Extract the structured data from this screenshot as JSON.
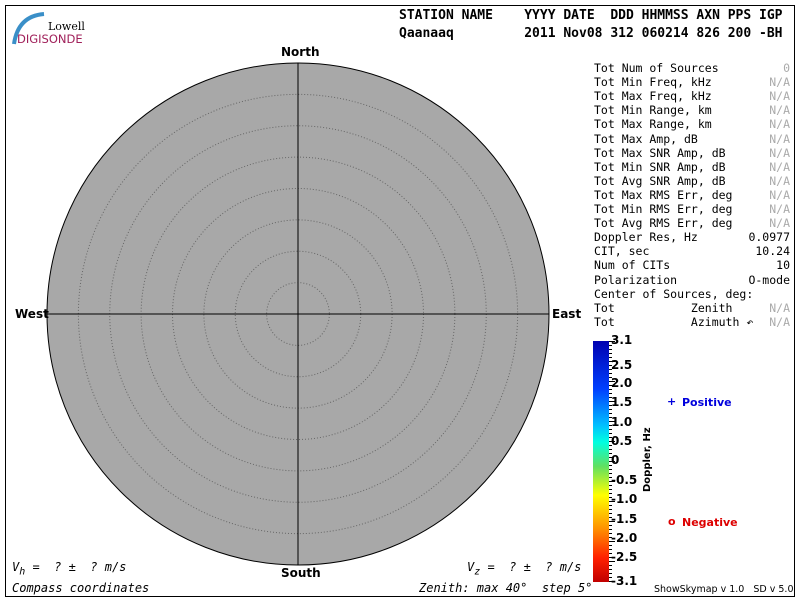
{
  "logo": {
    "line1": "Lowell",
    "line2": "DIGISONDE"
  },
  "header": {
    "labels": "STATION NAME    YYYY DATE  DDD HHMMSS AXN PPS IGP",
    "values": "Qaanaaq         2011 Nov08 312 060214 826 200 -BH"
  },
  "compass": {
    "north": "North",
    "south": "South",
    "east": "East",
    "west": "West"
  },
  "stats": [
    {
      "label": "Tot Num of Sources",
      "value": "0",
      "muted": true
    },
    {
      "label": "Tot Min Freq, kHz",
      "value": "N/A",
      "muted": true
    },
    {
      "label": "Tot Max Freq, kHz",
      "value": "N/A",
      "muted": true
    },
    {
      "label": "Tot Min Range, km",
      "value": "N/A",
      "muted": true
    },
    {
      "label": "Tot Max Range, km",
      "value": "N/A",
      "muted": true
    },
    {
      "label": "Tot Max Amp, dB",
      "value": "N/A",
      "muted": true
    },
    {
      "label": "Tot Max SNR Amp, dB",
      "value": "N/A",
      "muted": true
    },
    {
      "label": "Tot Min SNR Amp, dB",
      "value": "N/A",
      "muted": true
    },
    {
      "label": "Tot Avg SNR Amp, dB",
      "value": "N/A",
      "muted": true
    },
    {
      "label": "Tot Max RMS Err, deg",
      "value": "N/A",
      "muted": true
    },
    {
      "label": "Tot Min RMS Err, deg",
      "value": "N/A",
      "muted": true
    },
    {
      "label": "Tot Avg RMS Err, deg",
      "value": "N/A",
      "muted": true
    },
    {
      "label": "Doppler Res, Hz",
      "value": "0.0977",
      "muted": false
    },
    {
      "label": "CIT, sec",
      "value": "10.24",
      "muted": false
    },
    {
      "label": "Num of CITs",
      "value": "10",
      "muted": false
    },
    {
      "label": "Polarization",
      "value": "O-mode",
      "muted": false
    },
    {
      "label": "Center of Sources, deg:",
      "value": "",
      "muted": false
    },
    {
      "label": "Tot           Zenith",
      "value": "N/A",
      "muted": true
    },
    {
      "label": "Tot           Azimuth ↶",
      "value": "N/A",
      "muted": true
    }
  ],
  "colorbar": {
    "title": "Doppler, Hz",
    "ticks": [
      "3.1",
      "2.5",
      "2.0",
      "1.5",
      "1.0",
      "0.5",
      "0",
      "-0.5",
      "-1.0",
      "-1.5",
      "-2.0",
      "-2.5",
      "-3.1"
    ]
  },
  "legend": {
    "positive_symbol": "+",
    "positive": "Positive",
    "negative_symbol": "o",
    "negative": "Negative",
    "positive_color": "#0000dd",
    "negative_color": "#dd0000"
  },
  "footer": {
    "vh": "V",
    "vh_sub": "h",
    "vh_rest": " =  ? ±  ? m/s",
    "vz": "V",
    "vz_sub": "z",
    "vz_rest": " =  ? ±  ? m/s",
    "coords": "Compass coordinates",
    "zenith": "Zenith: max 40°  step 5°",
    "version": "ShowSkymap v 1.0   SD v 5.0"
  },
  "plot": {
    "disc_color": "#a8a8a8",
    "zenith_max_deg": 40,
    "zenith_step_deg": 5
  }
}
